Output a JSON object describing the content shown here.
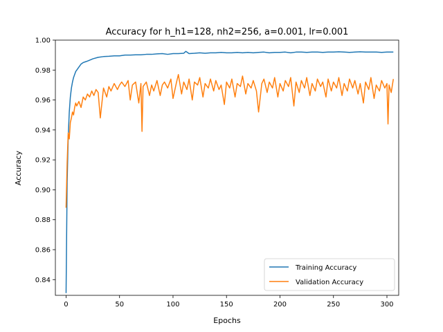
{
  "chart_data": {
    "type": "line",
    "title": "Accuracy for h_h1=128, nh2=256, a=0.001, lr=0.001",
    "xlabel": "Epochs",
    "ylabel": "Accuracy",
    "xlim": [
      -10,
      311
    ],
    "ylim": [
      0.8295,
      1.0
    ],
    "xticks": [
      0,
      50,
      100,
      150,
      200,
      250,
      300
    ],
    "yticks": [
      0.84,
      0.86,
      0.88,
      0.9,
      0.92,
      0.94,
      0.96,
      0.98,
      1.0
    ],
    "ytick_labels": [
      "0.84",
      "0.86",
      "0.88",
      "0.90",
      "0.92",
      "0.94",
      "0.96",
      "0.98",
      "1.00"
    ],
    "legend_position": "lower-right",
    "grid": false,
    "series": [
      {
        "name": "Training Accuracy",
        "color": "#1f77b4",
        "x": [
          0,
          1,
          2,
          3,
          4,
          5,
          6,
          7,
          8,
          9,
          10,
          12,
          14,
          16,
          18,
          20,
          25,
          30,
          35,
          40,
          45,
          50,
          55,
          60,
          65,
          70,
          75,
          80,
          85,
          90,
          95,
          100,
          105,
          110,
          112,
          115,
          120,
          125,
          130,
          135,
          140,
          145,
          150,
          155,
          160,
          165,
          170,
          175,
          180,
          185,
          190,
          195,
          200,
          205,
          210,
          215,
          220,
          225,
          230,
          235,
          240,
          245,
          250,
          255,
          260,
          265,
          270,
          275,
          280,
          285,
          290,
          295,
          300,
          306
        ],
        "y": [
          0.831,
          0.905,
          0.935,
          0.952,
          0.962,
          0.968,
          0.972,
          0.975,
          0.977,
          0.979,
          0.98,
          0.982,
          0.984,
          0.985,
          0.9855,
          0.986,
          0.9875,
          0.9885,
          0.989,
          0.9892,
          0.9895,
          0.9895,
          0.99,
          0.99,
          0.9902,
          0.9902,
          0.9905,
          0.9905,
          0.9908,
          0.991,
          0.9905,
          0.991,
          0.991,
          0.9912,
          0.9925,
          0.991,
          0.9912,
          0.9915,
          0.9912,
          0.9915,
          0.9915,
          0.9918,
          0.9915,
          0.9915,
          0.9918,
          0.9915,
          0.9918,
          0.9915,
          0.9918,
          0.992,
          0.9915,
          0.9918,
          0.9918,
          0.992,
          0.9915,
          0.992,
          0.992,
          0.9918,
          0.992,
          0.992,
          0.9918,
          0.992,
          0.992,
          0.9922,
          0.992,
          0.9918,
          0.992,
          0.9922,
          0.992,
          0.992,
          0.992,
          0.9918,
          0.992,
          0.992
        ]
      },
      {
        "name": "Validation Accuracy",
        "color": "#ff7f0e",
        "x": [
          0,
          1,
          2,
          3,
          4,
          5,
          6,
          7,
          8,
          9,
          10,
          12,
          14,
          16,
          18,
          20,
          22,
          24,
          26,
          28,
          30,
          32,
          35,
          38,
          40,
          42,
          45,
          48,
          50,
          52,
          55,
          58,
          60,
          62,
          65,
          68,
          70,
          71,
          72,
          75,
          78,
          80,
          82,
          85,
          88,
          90,
          92,
          95,
          98,
          100,
          103,
          105,
          108,
          110,
          113,
          115,
          118,
          120,
          123,
          125,
          128,
          130,
          133,
          135,
          138,
          140,
          143,
          145,
          148,
          150,
          153,
          155,
          158,
          160,
          163,
          165,
          168,
          170,
          173,
          175,
          178,
          180,
          183,
          185,
          188,
          190,
          193,
          195,
          198,
          200,
          203,
          205,
          208,
          210,
          213,
          215,
          218,
          220,
          223,
          225,
          228,
          230,
          233,
          235,
          238,
          240,
          243,
          245,
          248,
          250,
          253,
          255,
          258,
          260,
          263,
          265,
          268,
          270,
          273,
          275,
          278,
          280,
          283,
          285,
          288,
          290,
          293,
          295,
          298,
          300,
          301,
          302,
          304,
          306
        ],
        "y": [
          0.888,
          0.918,
          0.938,
          0.934,
          0.945,
          0.948,
          0.952,
          0.95,
          0.955,
          0.958,
          0.956,
          0.959,
          0.955,
          0.962,
          0.96,
          0.964,
          0.962,
          0.966,
          0.963,
          0.967,
          0.965,
          0.948,
          0.968,
          0.962,
          0.969,
          0.966,
          0.971,
          0.967,
          0.97,
          0.972,
          0.969,
          0.973,
          0.96,
          0.97,
          0.972,
          0.958,
          0.971,
          0.939,
          0.969,
          0.972,
          0.963,
          0.97,
          0.966,
          0.973,
          0.963,
          0.97,
          0.972,
          0.968,
          0.974,
          0.961,
          0.971,
          0.977,
          0.964,
          0.972,
          0.967,
          0.974,
          0.96,
          0.972,
          0.97,
          0.975,
          0.962,
          0.971,
          0.968,
          0.974,
          0.966,
          0.973,
          0.967,
          0.97,
          0.957,
          0.972,
          0.968,
          0.974,
          0.962,
          0.971,
          0.969,
          0.976,
          0.964,
          0.971,
          0.968,
          0.973,
          0.966,
          0.952,
          0.971,
          0.974,
          0.965,
          0.972,
          0.968,
          0.975,
          0.962,
          0.971,
          0.966,
          0.973,
          0.969,
          0.975,
          0.956,
          0.972,
          0.965,
          0.973,
          0.968,
          0.975,
          0.963,
          0.971,
          0.966,
          0.974,
          0.969,
          0.972,
          0.962,
          0.974,
          0.966,
          0.972,
          0.968,
          0.975,
          0.963,
          0.971,
          0.966,
          0.974,
          0.968,
          0.973,
          0.964,
          0.971,
          0.958,
          0.972,
          0.967,
          0.975,
          0.961,
          0.97,
          0.966,
          0.973,
          0.968,
          0.971,
          0.944,
          0.97,
          0.965,
          0.974
        ]
      }
    ]
  }
}
